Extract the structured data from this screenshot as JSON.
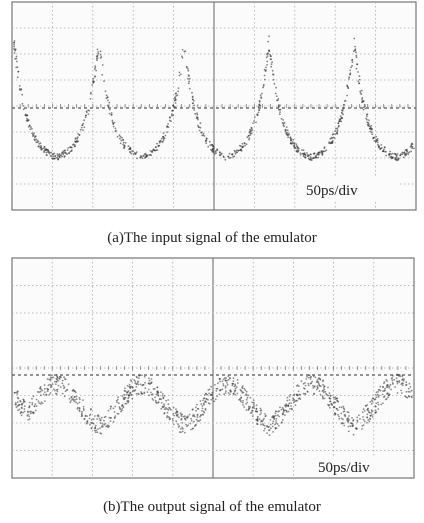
{
  "panels": [
    {
      "scale_label": "50ps/div",
      "caption": "(a)The input signal of the emulator"
    },
    {
      "scale_label": "50ps/div",
      "caption": "(b)The output signal of the emulator"
    }
  ]
}
